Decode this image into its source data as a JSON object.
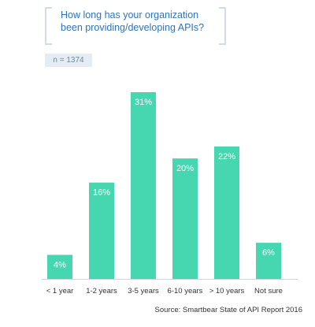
{
  "title": "How long has your organization been providing/developing APIs?",
  "n_label": "n = 1374",
  "source": "Source: Smartbear State of API Report 2016",
  "colors": {
    "bar": "#46d6b0",
    "axis": "#cfd6dc",
    "title": "#2f73b8"
  },
  "chart_data": {
    "type": "bar",
    "categories": [
      "< 1 year",
      "1-2 years",
      "3-5 years",
      "6-10 years",
      "> 10 years",
      "Not sure"
    ],
    "values": [
      4,
      16,
      31,
      20,
      22,
      6
    ],
    "value_labels": [
      "4%",
      "16%",
      "31%",
      "20%",
      "22%",
      "6%"
    ],
    "ylim": [
      0,
      31
    ],
    "grid": false
  }
}
